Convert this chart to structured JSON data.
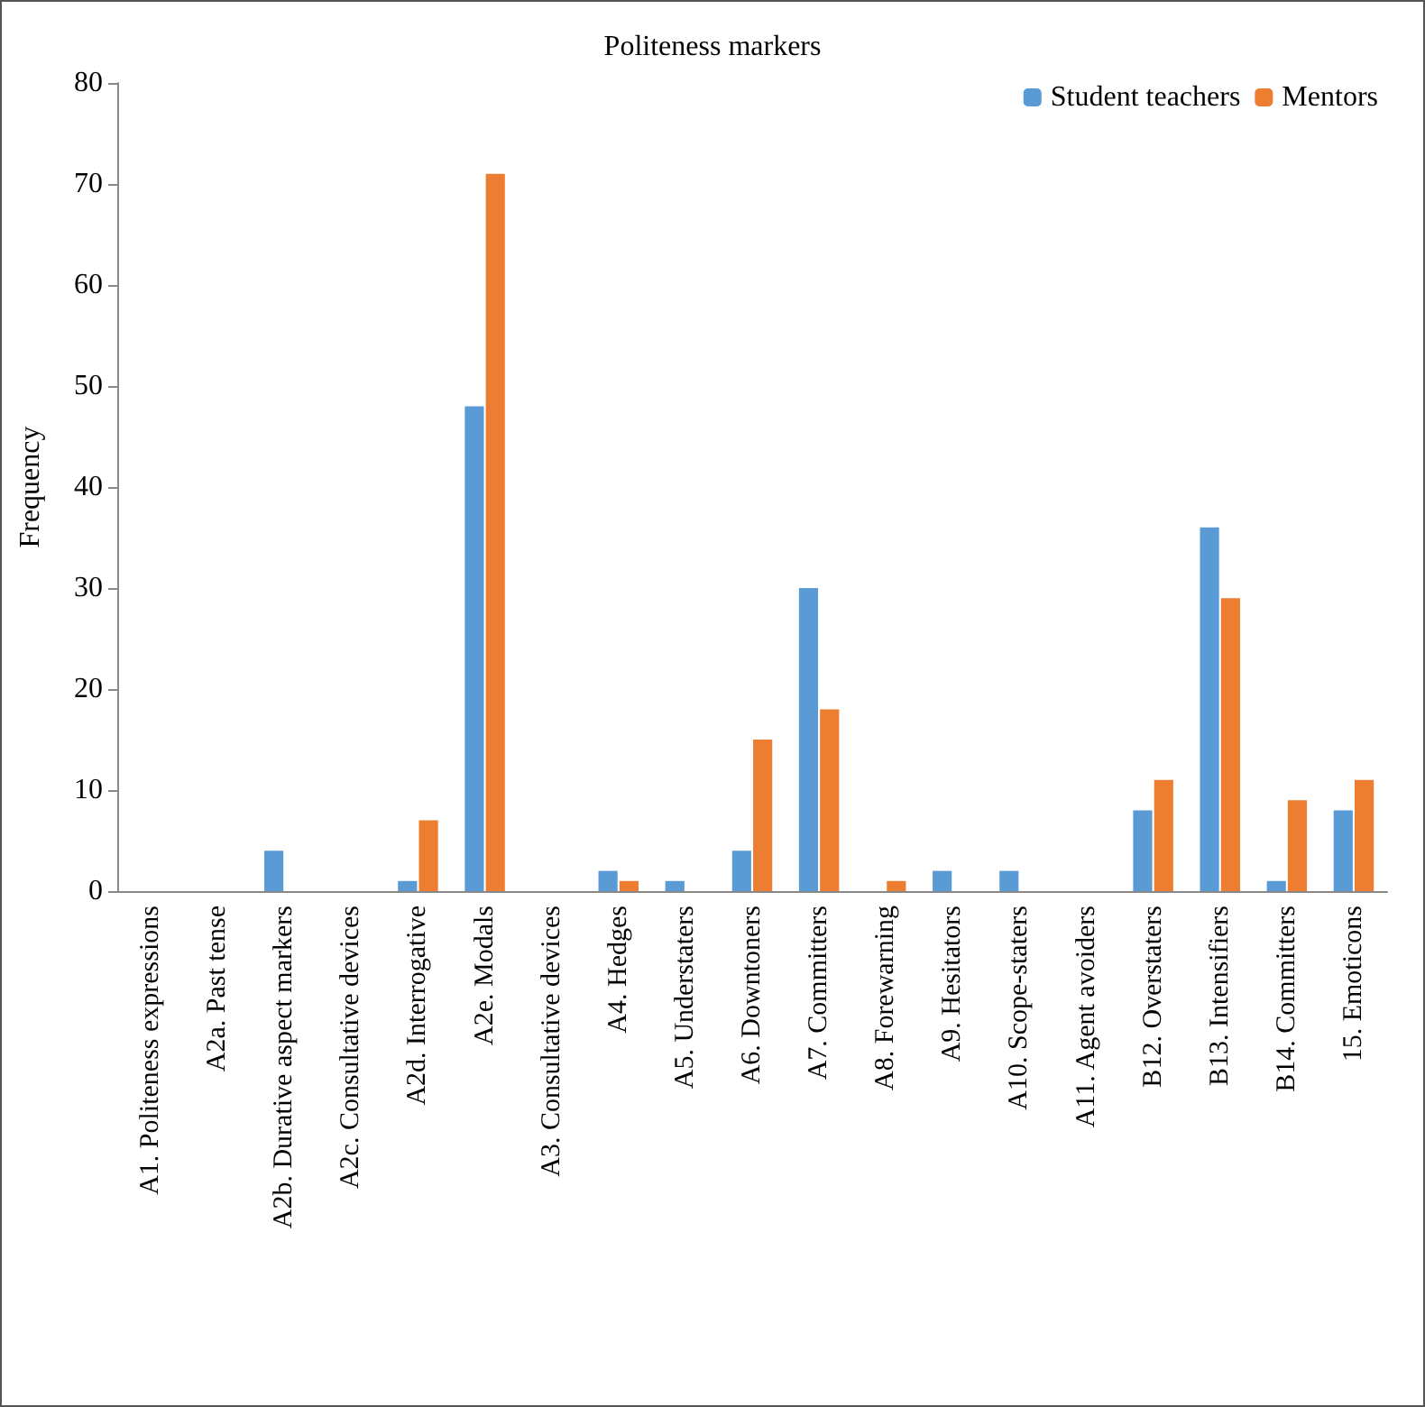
{
  "chart_data": {
    "type": "bar",
    "title": "Politeness markers",
    "ylabel": "Frequency",
    "categories": [
      "A1. Politeness expressions",
      "A2a. Past tense",
      "A2b. Durative aspect markers",
      "A2c. Consultative devices",
      "A2d. Interrogative",
      "A2e. Modals",
      "A3. Consultative devices",
      "A4. Hedges",
      "A5. Understaters",
      "A6. Downtoners",
      "A7. Committers",
      "A8. Forewarning",
      "A9. Hesitators",
      "A10. Scope-staters",
      "A11. Agent avoiders",
      "B12. Overstaters",
      "B13. Intensifiers",
      "B14. Committers",
      "15. Emoticons"
    ],
    "series": [
      {
        "name": "Student teachers",
        "color": "#5b9bd5",
        "values": [
          0,
          0,
          4,
          0,
          1,
          48,
          0,
          2,
          1,
          4,
          30,
          0,
          2,
          2,
          0,
          8,
          36,
          1,
          8
        ]
      },
      {
        "name": "Mentors",
        "color": "#ed7d31",
        "values": [
          0,
          0,
          0,
          0,
          7,
          71,
          0,
          1,
          0,
          15,
          18,
          1,
          0,
          0,
          0,
          11,
          29,
          9,
          11
        ]
      }
    ],
    "ylim": [
      0,
      80
    ],
    "yticks": [
      0,
      10,
      20,
      30,
      40,
      50,
      60,
      70,
      80
    ],
    "grid": false,
    "legend": "top right"
  }
}
